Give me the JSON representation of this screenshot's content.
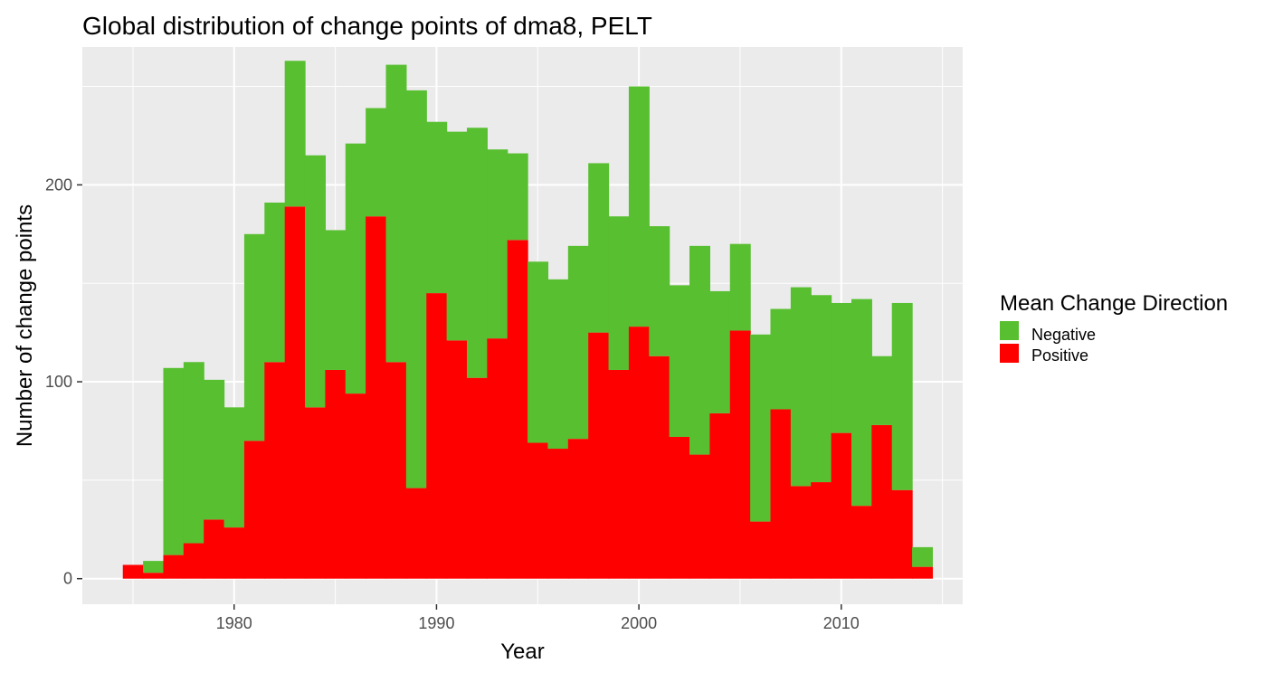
{
  "chart_data": {
    "type": "bar",
    "stacked": true,
    "title": "Global distribution of change points of dma8, PELT",
    "xlabel": "Year",
    "ylabel": "Number of change points",
    "xlim": [
      1972.5,
      2016.0
    ],
    "ylim": [
      -13,
      270
    ],
    "x_ticks": [
      1980,
      1990,
      2000,
      2010
    ],
    "x_tick_labels": [
      "1980",
      "1990",
      "2000",
      "2010"
    ],
    "y_ticks": [
      0,
      100,
      200
    ],
    "y_tick_labels": [
      "0",
      "100",
      "200"
    ],
    "grid": true,
    "legend": {
      "title": "Mean Change Direction",
      "position": "right"
    },
    "years": [
      1975,
      1976,
      1977,
      1978,
      1979,
      1980,
      1981,
      1982,
      1983,
      1984,
      1985,
      1986,
      1987,
      1988,
      1989,
      1990,
      1991,
      1992,
      1993,
      1994,
      1995,
      1996,
      1997,
      1998,
      1999,
      2000,
      2001,
      2002,
      2003,
      2004,
      2005,
      2006,
      2007,
      2008,
      2009,
      2010,
      2011,
      2012,
      2013,
      2014
    ],
    "series": [
      {
        "name": "Positive",
        "color": "#ff0000",
        "values": [
          7,
          3,
          12,
          18,
          30,
          26,
          70,
          110,
          189,
          87,
          106,
          94,
          184,
          110,
          46,
          145,
          121,
          102,
          122,
          172,
          69,
          66,
          71,
          125,
          106,
          128,
          113,
          72,
          63,
          84,
          126,
          29,
          86,
          47,
          49,
          74,
          37,
          78,
          45,
          6
        ]
      },
      {
        "name": "Negative",
        "color": "#58bf30",
        "values": [
          0,
          6,
          95,
          92,
          71,
          61,
          105,
          81,
          74,
          128,
          71,
          127,
          55,
          151,
          202,
          87,
          106,
          127,
          96,
          44,
          92,
          86,
          98,
          86,
          78,
          122,
          66,
          77,
          106,
          62,
          44,
          95,
          51,
          101,
          95,
          66,
          105,
          35,
          95,
          10
        ]
      }
    ],
    "bin_width": 1,
    "colors": {
      "panel_background": "#ebebeb",
      "grid_line": "#ffffff",
      "tick_text": "#4d4d4d",
      "tick_mark": "#333333"
    }
  }
}
